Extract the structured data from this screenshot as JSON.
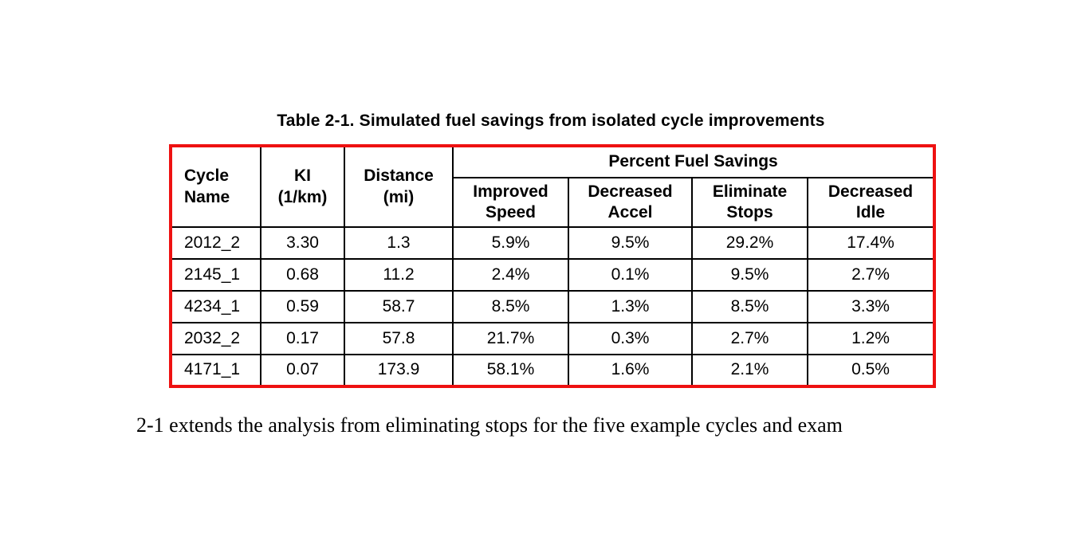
{
  "table": {
    "caption": "Table 2-1. Simulated fuel savings from isolated cycle improvements",
    "border_color": "#ee1111",
    "group_header": "Percent Fuel Savings",
    "fixed_headers": [
      "Cycle\nName",
      "KI\n(1/km)",
      "Distance\n(mi)"
    ],
    "sub_headers": [
      "Improved\nSpeed",
      "Decreased\nAccel",
      "Eliminate\nStops",
      "Decreased\nIdle"
    ],
    "rows": [
      [
        "2012_2",
        "3.30",
        "1.3",
        "5.9%",
        "9.5%",
        "29.2%",
        "17.4%"
      ],
      [
        "2145_1",
        "0.68",
        "11.2",
        "2.4%",
        "0.1%",
        "9.5%",
        "2.7%"
      ],
      [
        "4234_1",
        "0.59",
        "58.7",
        "8.5%",
        "1.3%",
        "8.5%",
        "3.3%"
      ],
      [
        "2032_2",
        "0.17",
        "57.8",
        "21.7%",
        "0.3%",
        "2.7%",
        "1.2%"
      ],
      [
        "4171_1",
        "0.07",
        "173.9",
        "58.1%",
        "1.6%",
        "2.1%",
        "0.5%"
      ]
    ]
  },
  "paragraph": {
    "text": "2-1 extends the analysis from eliminating stops for the five example cycles and exam"
  }
}
